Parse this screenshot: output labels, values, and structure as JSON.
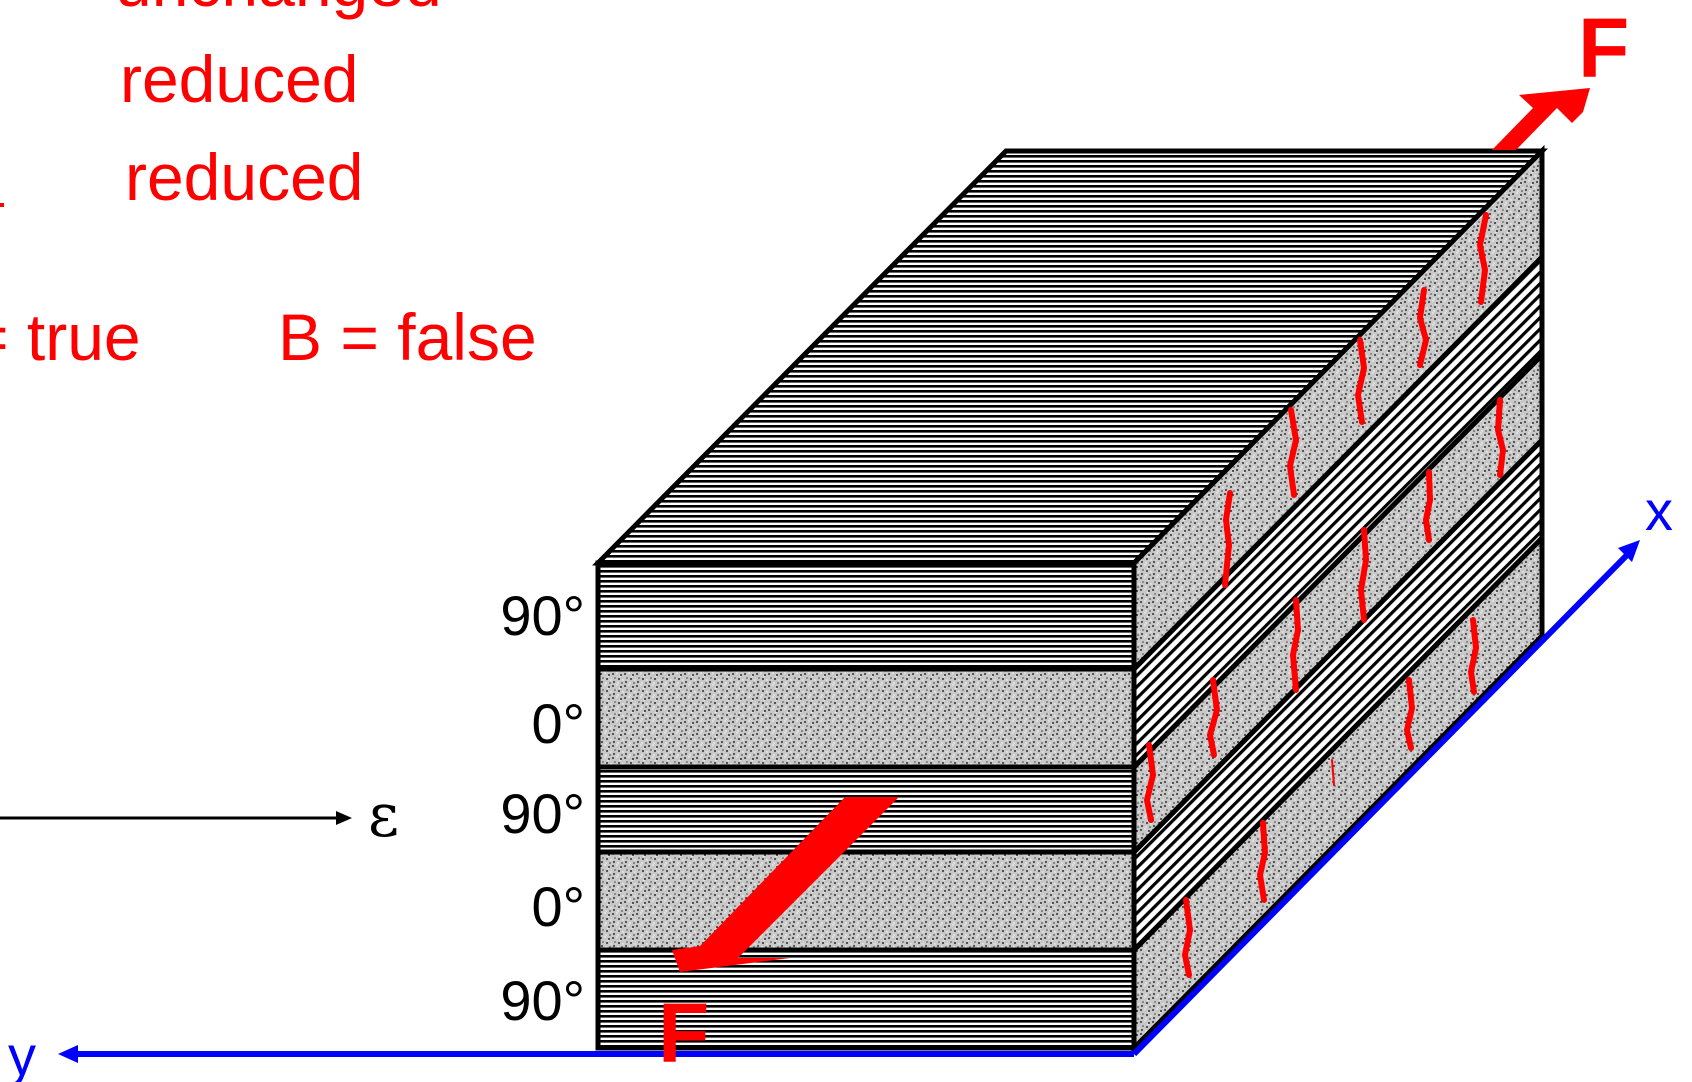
{
  "text": {
    "line1": "unchanged",
    "line2": "reduced",
    "line3": "reduced",
    "a_eq": "= true",
    "b_eq": "B = false"
  },
  "plies": {
    "labels": [
      "90°",
      "0°",
      "90°",
      "0°",
      "90°"
    ],
    "types": [
      "90",
      "0",
      "90",
      "0",
      "90"
    ]
  },
  "axes": {
    "x_label": "x",
    "y_label": "y",
    "strain_label": "ε"
  },
  "forces": {
    "top_label": "F",
    "bottom_label": "F"
  },
  "colors": {
    "annotation": "#ff0000",
    "axis": "#0000ff",
    "crack": "#ff0000",
    "outline": "#000000"
  }
}
